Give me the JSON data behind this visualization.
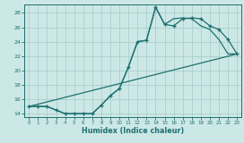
{
  "xlabel": "Humidex (Indice chaleur)",
  "bg_color": "#cce8e6",
  "grid_color": "#aacfcc",
  "line_color": "#1e7070",
  "line1_x": [
    0,
    1,
    2,
    3,
    4,
    5,
    6,
    7,
    8,
    9,
    10,
    11,
    12,
    13,
    14,
    15,
    16,
    17,
    18,
    19,
    20,
    21,
    22,
    23
  ],
  "line1_y": [
    15,
    15,
    15,
    14.5,
    14,
    14,
    14,
    14.0,
    15.2,
    16.5,
    17.5,
    20.5,
    24.0,
    24.2,
    28.8,
    26.4,
    26.2,
    27.2,
    27.3,
    27.2,
    26.2,
    25.7,
    24.3,
    22.3
  ],
  "line2_x": [
    0,
    23
  ],
  "line2_y": [
    15.0,
    22.3
  ],
  "line3_x": [
    0,
    1,
    2,
    3,
    4,
    5,
    6,
    7,
    8,
    9,
    10,
    11,
    12,
    13,
    14,
    15,
    16,
    17,
    18,
    19,
    20,
    21,
    22,
    23
  ],
  "line3_y": [
    15.0,
    15.0,
    15.0,
    14.5,
    14.0,
    14.0,
    14.0,
    14.0,
    15.2,
    16.5,
    17.5,
    20.5,
    24.0,
    24.2,
    28.8,
    26.4,
    27.2,
    27.3,
    27.2,
    26.2,
    25.7,
    24.3,
    22.3,
    22.3
  ],
  "xlim": [
    -0.5,
    23.5
  ],
  "ylim": [
    13.5,
    29.2
  ],
  "yticks": [
    14,
    16,
    18,
    20,
    22,
    24,
    26,
    28
  ],
  "xticks": [
    0,
    1,
    2,
    3,
    4,
    5,
    6,
    7,
    8,
    9,
    10,
    11,
    12,
    13,
    14,
    15,
    16,
    17,
    18,
    19,
    20,
    21,
    22,
    23
  ]
}
